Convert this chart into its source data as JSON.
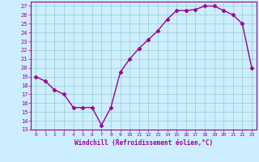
{
  "x": [
    0,
    1,
    2,
    3,
    4,
    5,
    6,
    7,
    8,
    9,
    10,
    11,
    12,
    13,
    14,
    15,
    16,
    17,
    18,
    19,
    20,
    21,
    22,
    23
  ],
  "y": [
    19.0,
    18.5,
    17.5,
    17.0,
    15.5,
    15.5,
    15.5,
    13.5,
    15.5,
    19.5,
    21.0,
    22.2,
    23.2,
    24.2,
    25.5,
    26.5,
    26.5,
    26.6,
    27.0,
    27.0,
    26.5,
    26.0,
    25.0,
    20.0
  ],
  "line_color": "#990099",
  "marker": "D",
  "marker_size": 2.5,
  "bg_color": "#cceeff",
  "grid_color": "#99cccc",
  "xlabel": "Windchill (Refroidissement éolien,°C)",
  "xlabel_color": "#990099",
  "tick_color": "#990099",
  "ylim": [
    13,
    27.5
  ],
  "yticks": [
    13,
    14,
    15,
    16,
    17,
    18,
    19,
    20,
    21,
    22,
    23,
    24,
    25,
    26,
    27
  ],
  "xticks": [
    0,
    1,
    2,
    3,
    4,
    5,
    6,
    7,
    8,
    9,
    10,
    11,
    12,
    13,
    14,
    15,
    16,
    17,
    18,
    19,
    20,
    21,
    22,
    23
  ],
  "line_width": 1.0
}
